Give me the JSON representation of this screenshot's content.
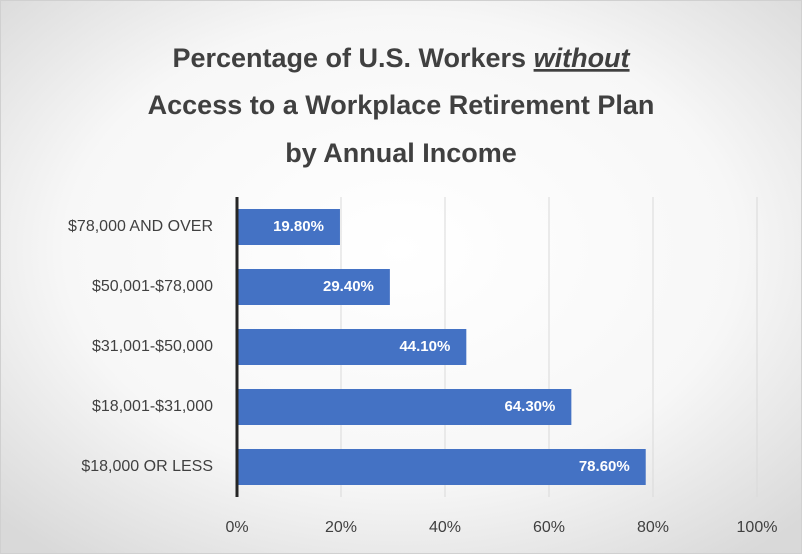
{
  "chart_data": {
    "type": "bar",
    "orientation": "horizontal",
    "title": {
      "line1": "Percentage of U.S. Workers",
      "emphasis": "without",
      "line2": "Access to a Workplace Retirement Plan",
      "line3": "by Annual Income"
    },
    "categories": [
      "$78,000 AND OVER",
      "$50,001-$78,000",
      "$31,001-$50,000",
      "$18,001-$31,000",
      "$18,000 OR LESS"
    ],
    "values": [
      19.8,
      29.4,
      44.1,
      64.3,
      78.6
    ],
    "value_labels": [
      "19.80%",
      "29.40%",
      "44.10%",
      "64.30%",
      "78.60%"
    ],
    "color": "#4472c4",
    "xlim": [
      0,
      100
    ],
    "xticks": [
      {
        "value": 0,
        "label": "0%"
      },
      {
        "value": 20,
        "label": "20%"
      },
      {
        "value": 40,
        "label": "40%"
      },
      {
        "value": 60,
        "label": "60%"
      },
      {
        "value": 80,
        "label": "80%"
      },
      {
        "value": 100,
        "label": "100%"
      }
    ],
    "grid": true
  }
}
